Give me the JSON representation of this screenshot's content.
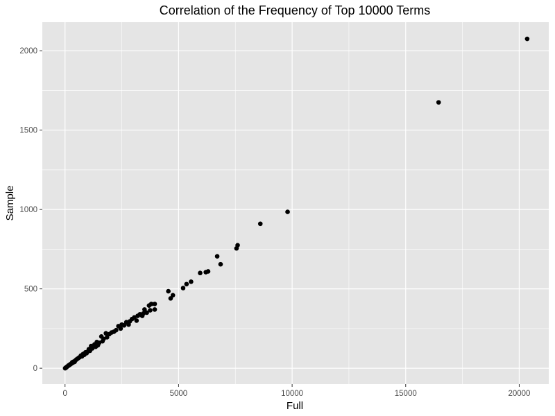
{
  "chart_data": {
    "type": "scatter",
    "title": "Correlation of the Frequency of Top 10000 Terms",
    "xlabel": "Full",
    "ylabel": "Sample",
    "xlim": [
      -1000,
      21300
    ],
    "ylim": [
      -100,
      2180
    ],
    "x_ticks": [
      0,
      5000,
      10000,
      15000,
      20000
    ],
    "x_tick_labels": [
      "0",
      "5000",
      "10000",
      "15000",
      "20000"
    ],
    "y_ticks": [
      0,
      500,
      1000,
      1500,
      2000
    ],
    "y_tick_labels": [
      "0",
      "500",
      "1000",
      "1500",
      "2000"
    ],
    "grid": true,
    "legend": "none",
    "colors": {
      "panel": "#e5e5e5",
      "grid_major": "#ffffff",
      "point": "#000000"
    },
    "points": [
      [
        20350,
        2075
      ],
      [
        16450,
        1675
      ],
      [
        9800,
        985
      ],
      [
        8600,
        910
      ],
      [
        7600,
        775
      ],
      [
        7550,
        755
      ],
      [
        6700,
        705
      ],
      [
        6850,
        655
      ],
      [
        6300,
        610
      ],
      [
        6200,
        605
      ],
      [
        5950,
        600
      ],
      [
        5550,
        545
      ],
      [
        5350,
        530
      ],
      [
        5200,
        505
      ],
      [
        4750,
        460
      ],
      [
        4650,
        440
      ],
      [
        4550,
        485
      ],
      [
        3950,
        405
      ],
      [
        3950,
        370
      ],
      [
        3800,
        405
      ],
      [
        3750,
        365
      ],
      [
        3700,
        395
      ],
      [
        3600,
        350
      ],
      [
        3500,
        370
      ],
      [
        3450,
        345
      ],
      [
        3400,
        330
      ],
      [
        3300,
        340
      ],
      [
        3200,
        330
      ],
      [
        3150,
        300
      ],
      [
        3050,
        320
      ],
      [
        2950,
        310
      ],
      [
        2850,
        295
      ],
      [
        2800,
        275
      ],
      [
        2700,
        290
      ],
      [
        2600,
        270
      ],
      [
        2500,
        275
      ],
      [
        2450,
        250
      ],
      [
        2350,
        265
      ],
      [
        2250,
        240
      ],
      [
        2150,
        230
      ],
      [
        2050,
        225
      ],
      [
        1950,
        215
      ],
      [
        1850,
        195
      ],
      [
        1800,
        220
      ],
      [
        1700,
        185
      ],
      [
        1650,
        170
      ],
      [
        1600,
        200
      ],
      [
        1500,
        160
      ],
      [
        1450,
        145
      ],
      [
        1400,
        165
      ],
      [
        1350,
        135
      ],
      [
        1300,
        150
      ],
      [
        1200,
        125
      ],
      [
        1150,
        140
      ],
      [
        1100,
        110
      ],
      [
        1050,
        120
      ],
      [
        1000,
        105
      ],
      [
        950,
        95
      ],
      [
        900,
        100
      ],
      [
        850,
        85
      ],
      [
        800,
        90
      ],
      [
        750,
        75
      ],
      [
        700,
        80
      ],
      [
        650,
        70
      ],
      [
        600,
        65
      ],
      [
        550,
        60
      ],
      [
        500,
        55
      ],
      [
        450,
        48
      ],
      [
        420,
        40
      ],
      [
        380,
        42
      ],
      [
        350,
        35
      ],
      [
        320,
        38
      ],
      [
        280,
        30
      ],
      [
        250,
        26
      ],
      [
        220,
        24
      ],
      [
        190,
        20
      ],
      [
        160,
        18
      ],
      [
        130,
        14
      ],
      [
        100,
        11
      ],
      [
        80,
        9
      ],
      [
        60,
        6
      ],
      [
        40,
        4
      ],
      [
        20,
        2
      ],
      [
        5,
        0
      ]
    ]
  }
}
